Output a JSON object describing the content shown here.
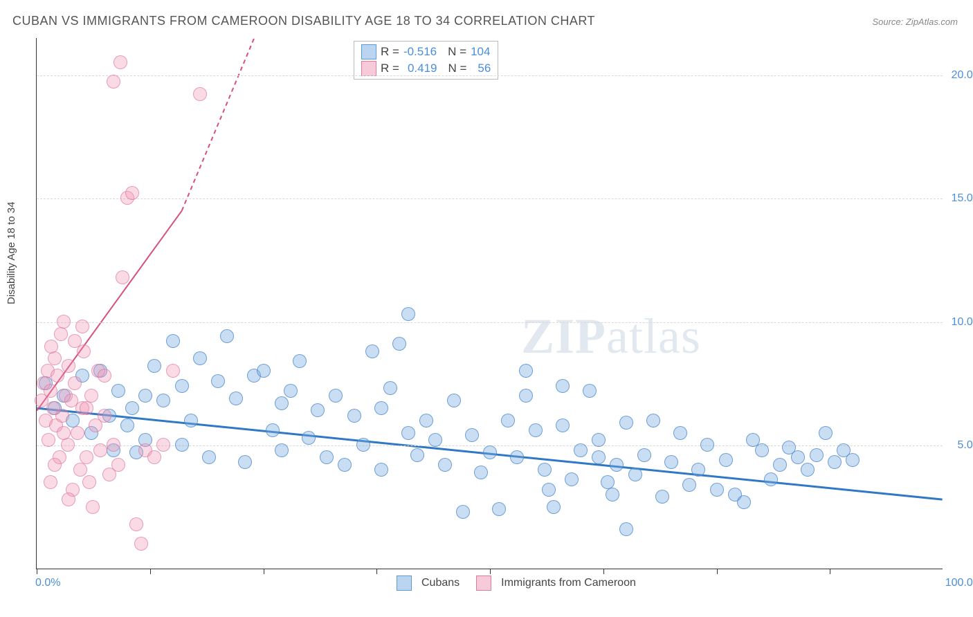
{
  "title": "CUBAN VS IMMIGRANTS FROM CAMEROON DISABILITY AGE 18 TO 34 CORRELATION CHART",
  "source_label": "Source: ",
  "source_value": "ZipAtlas.com",
  "ylabel": "Disability Age 18 to 34",
  "watermark_bold": "ZIP",
  "watermark_rest": "atlas",
  "chart": {
    "type": "scatter",
    "background_color": "#ffffff",
    "grid_color": "#d8d8d8",
    "axis_color": "#333333",
    "x_range": [
      0,
      100
    ],
    "y_range": [
      0,
      21.5
    ],
    "x_min_label": "0.0%",
    "x_max_label": "100.0%",
    "x_tick_positions": [
      0,
      12.5,
      25,
      37.5,
      50,
      62.5,
      75,
      87.5
    ],
    "y_gridlines": [
      {
        "value": 5.0,
        "label": "5.0%"
      },
      {
        "value": 10.0,
        "label": "10.0%"
      },
      {
        "value": 15.0,
        "label": "15.0%"
      },
      {
        "value": 20.0,
        "label": "20.0%"
      }
    ],
    "series": [
      {
        "name": "Cubans",
        "color_fill": "rgba(120,170,225,0.4)",
        "color_stroke": "rgba(70,130,200,0.7)",
        "marker_radius": 10,
        "trend": {
          "x1": 0,
          "y1": 6.5,
          "x2": 100,
          "y2": 2.8,
          "color": "#2f78c4",
          "width": 3
        },
        "R": "-0.516",
        "N": "104",
        "points": [
          [
            1,
            7.5
          ],
          [
            2,
            6.5
          ],
          [
            3,
            7.0
          ],
          [
            4,
            6.0
          ],
          [
            5,
            7.8
          ],
          [
            6,
            5.5
          ],
          [
            7,
            8.0
          ],
          [
            8,
            6.2
          ],
          [
            8.5,
            4.8
          ],
          [
            9,
            7.2
          ],
          [
            10,
            5.8
          ],
          [
            10.5,
            6.5
          ],
          [
            11,
            4.7
          ],
          [
            12,
            7.0
          ],
          [
            12,
            5.2
          ],
          [
            13,
            8.2
          ],
          [
            14,
            6.8
          ],
          [
            15,
            9.2
          ],
          [
            16,
            7.4
          ],
          [
            16,
            5.0
          ],
          [
            17,
            6.0
          ],
          [
            18,
            8.5
          ],
          [
            19,
            4.5
          ],
          [
            20,
            7.6
          ],
          [
            21,
            9.4
          ],
          [
            22,
            6.9
          ],
          [
            23,
            4.3
          ],
          [
            24,
            7.8
          ],
          [
            25,
            8.0
          ],
          [
            26,
            5.6
          ],
          [
            27,
            6.7
          ],
          [
            27,
            4.8
          ],
          [
            28,
            7.2
          ],
          [
            29,
            8.4
          ],
          [
            30,
            5.3
          ],
          [
            31,
            6.4
          ],
          [
            32,
            4.5
          ],
          [
            33,
            7.0
          ],
          [
            34,
            4.2
          ],
          [
            35,
            6.2
          ],
          [
            36,
            5.0
          ],
          [
            37,
            8.8
          ],
          [
            38,
            6.5
          ],
          [
            38,
            4.0
          ],
          [
            39,
            7.3
          ],
          [
            40,
            9.1
          ],
          [
            41,
            5.5
          ],
          [
            42,
            4.6
          ],
          [
            43,
            6.0
          ],
          [
            44,
            5.2
          ],
          [
            45,
            4.2
          ],
          [
            46,
            6.8
          ],
          [
            47,
            2.3
          ],
          [
            48,
            5.4
          ],
          [
            49,
            3.9
          ],
          [
            50,
            4.7
          ],
          [
            51,
            2.4
          ],
          [
            52,
            6.0
          ],
          [
            53,
            4.5
          ],
          [
            54,
            7.0
          ],
          [
            55,
            5.6
          ],
          [
            56,
            4.0
          ],
          [
            56.5,
            3.2
          ],
          [
            57,
            2.5
          ],
          [
            58,
            5.8
          ],
          [
            59,
            3.6
          ],
          [
            60,
            4.8
          ],
          [
            61,
            7.2
          ],
          [
            62,
            5.2
          ],
          [
            63,
            3.5
          ],
          [
            63.5,
            3.0
          ],
          [
            64,
            4.2
          ],
          [
            65,
            5.9
          ],
          [
            66,
            3.8
          ],
          [
            67,
            4.6
          ],
          [
            68,
            6.0
          ],
          [
            69,
            2.9
          ],
          [
            70,
            4.3
          ],
          [
            71,
            5.5
          ],
          [
            72,
            3.4
          ],
          [
            73,
            4.0
          ],
          [
            74,
            5.0
          ],
          [
            75,
            3.2
          ],
          [
            76,
            4.4
          ],
          [
            77,
            3.0
          ],
          [
            78,
            2.7
          ],
          [
            79,
            5.2
          ],
          [
            80,
            4.8
          ],
          [
            81,
            3.6
          ],
          [
            82,
            4.2
          ],
          [
            83,
            4.9
          ],
          [
            84,
            4.5
          ],
          [
            85,
            4.0
          ],
          [
            86,
            4.6
          ],
          [
            87,
            5.5
          ],
          [
            88,
            4.3
          ],
          [
            89,
            4.8
          ],
          [
            90,
            4.4
          ],
          [
            41,
            10.3
          ],
          [
            54,
            8.0
          ],
          [
            58,
            7.4
          ],
          [
            65,
            1.6
          ],
          [
            62,
            4.5
          ]
        ]
      },
      {
        "name": "Immigrants from Cameroon",
        "color_fill": "rgba(240,150,180,0.35)",
        "color_stroke": "rgba(220,110,150,0.6)",
        "marker_radius": 10,
        "trend": {
          "x1": 0,
          "y1": 6.4,
          "x2": 16,
          "y2": 14.5,
          "dash_to_x": 24,
          "dash_to_y": 21.5,
          "color": "#d84f7a",
          "width": 2
        },
        "R": "0.419",
        "N": "56",
        "points": [
          [
            0.5,
            6.8
          ],
          [
            0.8,
            7.5
          ],
          [
            1.0,
            6.0
          ],
          [
            1.2,
            8.0
          ],
          [
            1.3,
            5.2
          ],
          [
            1.5,
            7.2
          ],
          [
            1.6,
            9.0
          ],
          [
            1.8,
            6.5
          ],
          [
            2.0,
            8.5
          ],
          [
            2.1,
            5.8
          ],
          [
            2.3,
            7.8
          ],
          [
            2.5,
            4.5
          ],
          [
            2.7,
            9.5
          ],
          [
            2.8,
            6.2
          ],
          [
            3.0,
            10.0
          ],
          [
            3.2,
            7.0
          ],
          [
            3.4,
            5.0
          ],
          [
            3.5,
            8.2
          ],
          [
            3.8,
            6.8
          ],
          [
            4.0,
            3.2
          ],
          [
            4.2,
            7.5
          ],
          [
            4.5,
            5.5
          ],
          [
            4.8,
            4.0
          ],
          [
            5.0,
            6.5
          ],
          [
            5.2,
            8.8
          ],
          [
            5.5,
            4.5
          ],
          [
            5.8,
            3.5
          ],
          [
            6.0,
            7.0
          ],
          [
            6.2,
            2.5
          ],
          [
            6.5,
            5.8
          ],
          [
            7.0,
            4.8
          ],
          [
            7.5,
            6.2
          ],
          [
            8.0,
            3.8
          ],
          [
            8.5,
            5.0
          ],
          [
            9.0,
            4.2
          ],
          [
            9.5,
            11.8
          ],
          [
            10.0,
            15.0
          ],
          [
            10.5,
            15.2
          ],
          [
            11,
            1.8
          ],
          [
            12,
            4.8
          ],
          [
            13,
            4.5
          ],
          [
            14,
            5.0
          ],
          [
            15,
            8.0
          ],
          [
            18,
            19.2
          ],
          [
            8.5,
            19.7
          ],
          [
            9.2,
            20.5
          ],
          [
            5,
            9.8
          ],
          [
            3.5,
            2.8
          ],
          [
            4.2,
            9.2
          ],
          [
            2.0,
            4.2
          ],
          [
            1.5,
            3.5
          ],
          [
            6.8,
            8.0
          ],
          [
            11.5,
            1.0
          ],
          [
            7.5,
            7.8
          ],
          [
            5.5,
            6.5
          ],
          [
            3.0,
            5.5
          ]
        ]
      }
    ],
    "stats_box": {
      "R_label": "R =",
      "N_label": "N ="
    },
    "bottom_legend": [
      "Cubans",
      "Immigrants from Cameroon"
    ]
  }
}
